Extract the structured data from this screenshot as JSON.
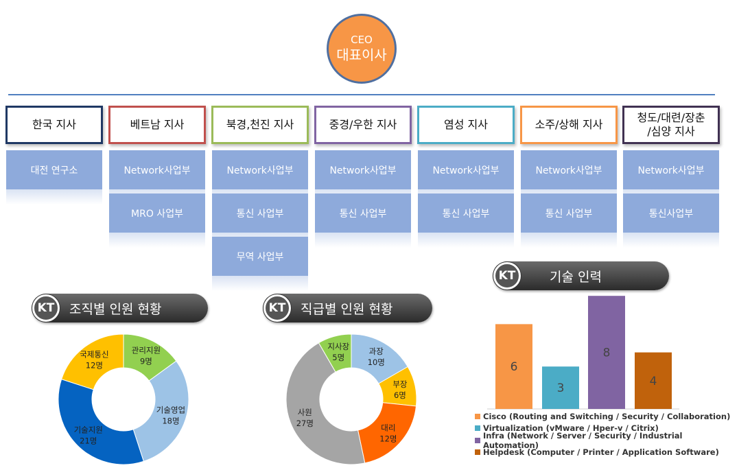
{
  "ceo": {
    "line1": "CEO",
    "line2": "대표이사"
  },
  "branches": [
    {
      "name": "한국 지사",
      "color": "#1f3864",
      "depts": [
        "대전 연구소"
      ]
    },
    {
      "name": "베트남 지사",
      "color": "#c0504d",
      "depts": [
        "Network사업부",
        "MRO 사업부"
      ]
    },
    {
      "name": "북경,천진 지사",
      "color": "#9bbb59",
      "depts": [
        "Network사업부",
        "통신 사업부",
        "무역 사업부"
      ]
    },
    {
      "name": "중경/우한 지사",
      "color": "#8064a2",
      "depts": [
        "Network사업부",
        "통신 사업부"
      ]
    },
    {
      "name": "염성 지사",
      "color": "#4bacc6",
      "depts": [
        "Network사업부",
        "통신 사업부"
      ]
    },
    {
      "name": "소주/상해 지사",
      "color": "#f79646",
      "depts": [
        "Network사업부",
        "통신 사업부"
      ]
    },
    {
      "name": "청도/대련/장춘\n/심양 지사",
      "color": "#403152",
      "depts": [
        "Network사업부",
        "통신사업부"
      ]
    }
  ],
  "sections": {
    "kt_logo": "KT",
    "org_staff": "조직별 인원 현황",
    "rank_staff": "직급별 인원 현황",
    "tech_staff": "기술 인력"
  },
  "chart_data": [
    {
      "type": "pie",
      "title": "조직별 인원 현황",
      "categories": [
        "관리지원",
        "기술영업",
        "기술지원",
        "국제통신"
      ],
      "values": [
        9,
        18,
        21,
        12
      ],
      "labels": [
        "9명",
        "18명",
        "21명",
        "12명"
      ],
      "colors": [
        "#92d050",
        "#9dc3e6",
        "#0563c1",
        "#ffc000"
      ]
    },
    {
      "type": "pie",
      "title": "직급별 인원 현황",
      "categories": [
        "과장",
        "부장",
        "대리",
        "사원",
        "지사장"
      ],
      "values": [
        10,
        6,
        12,
        27,
        5
      ],
      "labels": [
        "10명",
        "6명",
        "12명",
        "27명",
        "5명"
      ],
      "colors": [
        "#9dc3e6",
        "#ffc000",
        "#ff6600",
        "#a5a5a5",
        "#92d050"
      ]
    },
    {
      "type": "bar",
      "title": "기술 인력",
      "categories": [
        "Cisco (Routing and Switching / Security / Collaboration)",
        "Virtualization (vMware / Hper-v  / Citrix)",
        "Infra (Network / Server  / Security /  Industrial Automation)",
        "Helpdesk (Computer / Printer / Application Software)"
      ],
      "values": [
        6,
        3,
        8,
        4
      ],
      "colors": [
        "#f79646",
        "#4bacc6",
        "#8064a2",
        "#c0620c"
      ],
      "ylim": [
        0,
        8
      ]
    }
  ]
}
